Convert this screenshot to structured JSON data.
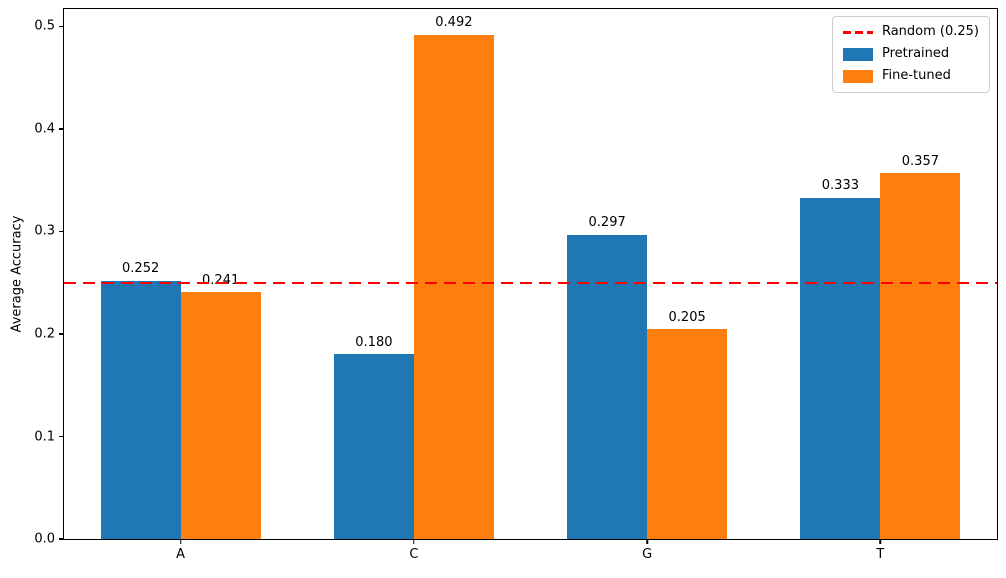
{
  "chart_data": {
    "type": "bar",
    "title": "",
    "xlabel": "",
    "ylabel": "Average Accuracy",
    "categories": [
      "A",
      "C",
      "G",
      "T"
    ],
    "series": [
      {
        "name": "Pretrained",
        "color": "#1f77b4",
        "values": [
          0.252,
          0.18,
          0.297,
          0.333
        ]
      },
      {
        "name": "Fine-tuned",
        "color": "#ff7f0e",
        "values": [
          0.241,
          0.492,
          0.205,
          0.357
        ]
      }
    ],
    "value_label_decimals": 3,
    "reference_line": {
      "label": "Random (0.25)",
      "value": 0.25,
      "color": "#ff0000",
      "style": "dashed"
    },
    "ylim": [
      0,
      0.517
    ],
    "yticks": [
      "0.0",
      "0.1",
      "0.2",
      "0.3",
      "0.4",
      "0.5"
    ],
    "grid": false,
    "legend": {
      "position": "upper right",
      "entries": [
        {
          "label": "Random (0.25)",
          "swatch": "dashed-line",
          "color": "#ff0000"
        },
        {
          "label": "Pretrained",
          "swatch": "filled",
          "color": "#1f77b4"
        },
        {
          "label": "Fine-tuned",
          "swatch": "filled",
          "color": "#ff7f0e"
        }
      ]
    }
  }
}
